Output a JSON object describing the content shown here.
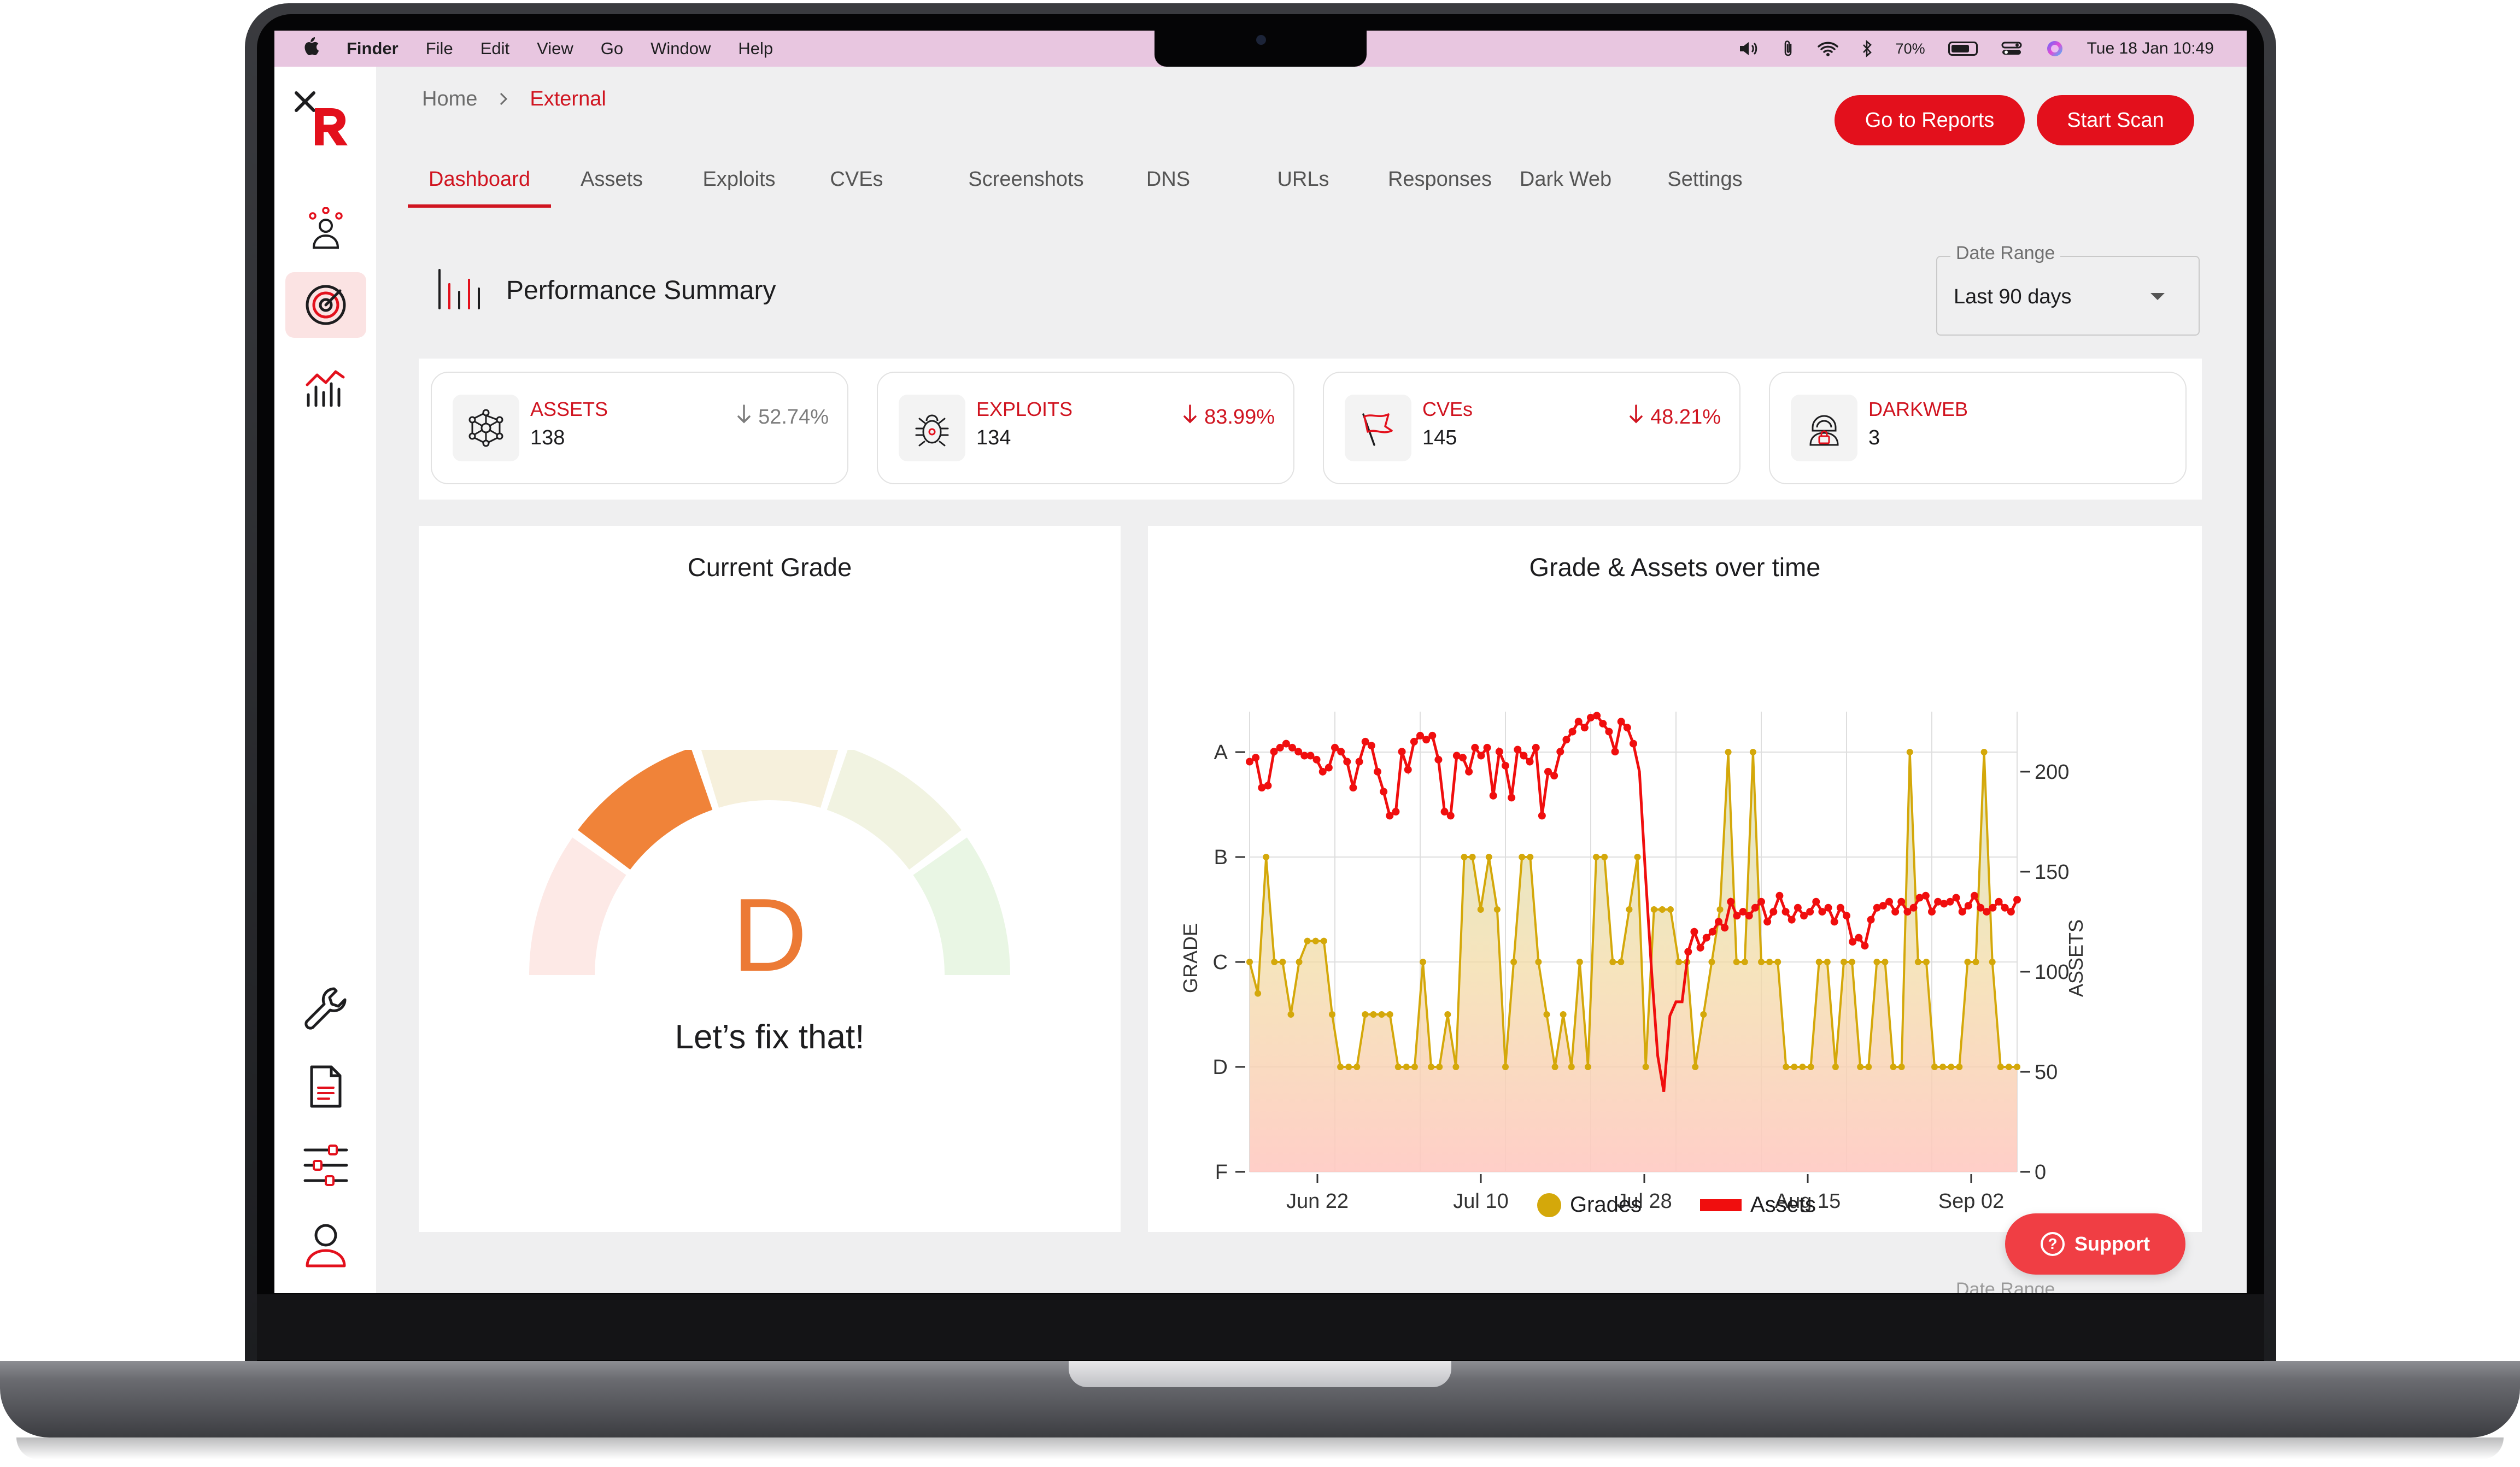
{
  "menubar": {
    "apple": "",
    "app": "Finder",
    "items": [
      "File",
      "Edit",
      "View",
      "Go",
      "Window",
      "Help"
    ],
    "battery": "70%",
    "datetime": "Tue 18 Jan  10:49"
  },
  "breadcrumb": {
    "home": "Home",
    "separator": ">",
    "current": "External"
  },
  "actions": {
    "reports": "Go to Reports",
    "scan": "Start Scan"
  },
  "tabs": [
    "Dashboard",
    "Assets",
    "Exploits",
    "CVEs",
    "Screenshots",
    "DNS",
    "URLs",
    "Responses",
    "Dark Web",
    "Settings"
  ],
  "active_tab": "Dashboard",
  "summary": {
    "title": "Performance Summary",
    "date_range_label": "Date Range",
    "date_range_value": "Last 90 days"
  },
  "stats": [
    {
      "label": "ASSETS",
      "value": "138",
      "change": "52.74%",
      "trend": "down",
      "tone": "gray",
      "icon": "network-icon"
    },
    {
      "label": "EXPLOITS",
      "value": "134",
      "change": "83.99%",
      "trend": "down",
      "tone": "red",
      "icon": "bug-icon"
    },
    {
      "label": "CVEs",
      "value": "145",
      "change": "48.21%",
      "trend": "down",
      "tone": "red",
      "icon": "flag-icon"
    },
    {
      "label": "DARKWEB",
      "value": "3",
      "change": "",
      "trend": "",
      "tone": "red",
      "icon": "hacker-icon"
    }
  ],
  "grade_panel": {
    "title": "Current Grade",
    "grade": "D",
    "caption": "Let’s fix that!",
    "gauge_colors": [
      "#fde9e6",
      "#f08339",
      "#f6f0dc",
      "#f1f3e1",
      "#e9f6e4"
    ],
    "active_segment_color": "#f08339"
  },
  "support": {
    "label": "Support"
  },
  "ghost_text": "Date Range",
  "colors": {
    "accent": "#e3101c",
    "grades": "#d4a80a",
    "assets": "#f00e0e"
  },
  "chart_data": {
    "type": "line",
    "title": "Grade & Assets over time",
    "xlabel": "",
    "ylabel": "GRADE",
    "y2label": "ASSETS",
    "x_ticks": [
      "Jun 22",
      "Jul 10",
      "Jul 28",
      "Aug 15",
      "Sep 02"
    ],
    "y_ticks": [
      "A",
      "B",
      "C",
      "D",
      "F"
    ],
    "y2_ticks": [
      200,
      150,
      100,
      50,
      0
    ],
    "y2lim": [
      0,
      230
    ],
    "legend": "bottom",
    "grid": true,
    "series": [
      {
        "name": "Grades",
        "type": "area",
        "color": "#d4a80a",
        "values_grade_index": [
          2,
          2.3,
          1,
          2,
          2,
          2.5,
          2,
          1.8,
          1.8,
          1.8,
          2.5,
          3,
          3,
          3,
          2.5,
          2.5,
          2.5,
          2.5,
          3,
          3,
          3,
          2,
          3,
          3,
          2.5,
          3,
          1,
          1,
          1.5,
          1,
          1.5,
          3,
          2,
          1,
          1,
          2,
          2.5,
          3,
          2.5,
          3,
          2,
          3,
          1,
          1,
          2,
          2,
          1.5,
          1,
          3,
          1.5,
          1.5,
          1.5,
          2,
          2,
          3,
          2.5,
          2,
          1.5,
          0,
          2,
          2,
          0,
          2,
          2,
          2,
          3,
          3,
          3,
          3,
          2,
          2,
          3,
          2,
          2,
          3,
          3,
          2,
          2,
          3,
          3,
          0,
          2,
          2,
          3,
          3,
          3,
          3,
          2,
          2,
          0,
          2,
          3,
          3,
          3
        ]
      },
      {
        "name": "Assets",
        "type": "line",
        "color": "#f00e0e",
        "values": [
          205,
          207,
          192,
          193,
          210,
          212,
          214,
          212,
          210,
          208,
          208,
          206,
          200,
          202,
          212,
          210,
          205,
          192,
          205,
          215,
          213,
          200,
          190,
          178,
          180,
          210,
          201,
          215,
          218,
          216,
          218,
          206,
          180,
          178,
          208,
          207,
          200,
          212,
          208,
          212,
          188,
          210,
          203,
          187,
          211,
          208,
          205,
          212,
          178,
          200,
          198,
          210,
          216,
          220,
          225,
          222,
          227,
          228,
          224,
          220,
          210,
          225,
          222,
          214,
          200,
          148,
          100,
          58,
          40,
          78,
          85,
          85,
          110,
          120,
          112,
          117,
          120,
          125,
          122,
          135,
          128,
          130,
          128,
          132,
          135,
          125,
          130,
          138,
          130,
          126,
          132,
          128,
          130,
          135,
          130,
          132,
          125,
          132,
          128,
          115,
          117,
          113,
          126,
          132,
          133,
          135,
          130,
          135,
          130,
          132,
          137,
          138,
          130,
          135,
          134,
          135,
          137,
          130,
          133,
          138,
          132,
          130,
          132,
          135,
          132,
          130,
          136
        ]
      }
    ]
  }
}
